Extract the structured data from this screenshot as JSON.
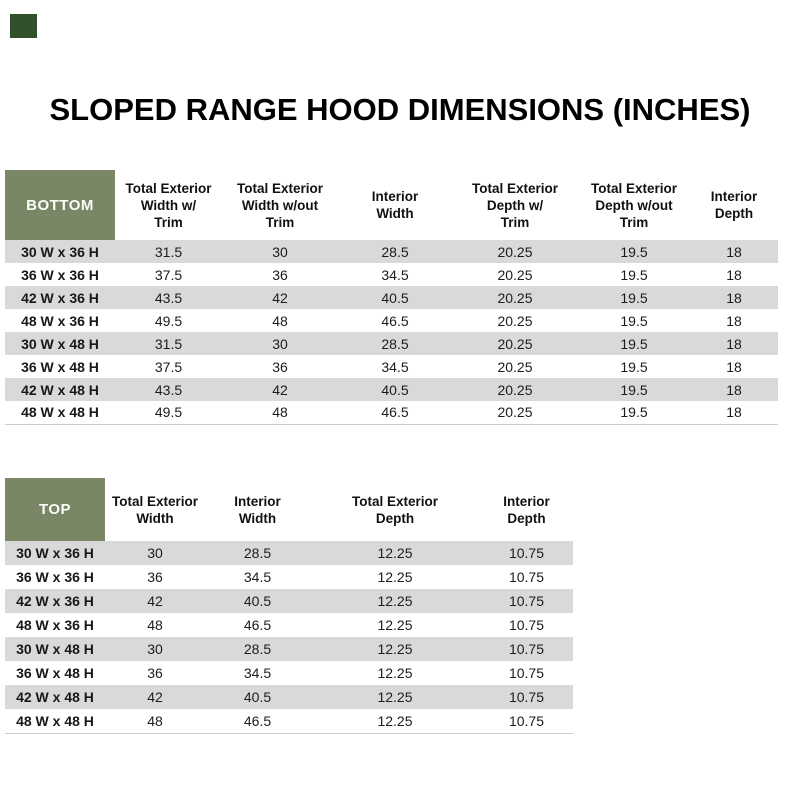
{
  "page": {
    "title": "SLOPED RANGE HOOD DIMENSIONS (INCHES)"
  },
  "colors": {
    "header_green": "#7A8767",
    "corner_square_green": "#33502C",
    "stripe_gray": "#D9D9D9"
  },
  "tables": [
    {
      "name": "bottom",
      "corner_label": "BOTTOM",
      "columns": [
        {
          "label": "Total Exterior Width w/ Trim",
          "lines": [
            "Total Exterior",
            "Width w/",
            "Trim"
          ]
        },
        {
          "label": "Total Exterior Width w/out Trim",
          "lines": [
            "Total Exterior",
            "Width w/out",
            "Trim"
          ]
        },
        {
          "label": "Interior Width",
          "lines": [
            "Interior",
            "Width"
          ]
        },
        {
          "label": "Total Exterior Depth w/ Trim",
          "lines": [
            "Total Exterior",
            "Depth w/",
            "Trim"
          ]
        },
        {
          "label": "Total Exterior Depth w/out Trim",
          "lines": [
            "Total Exterior",
            "Depth w/out",
            "Trim"
          ]
        },
        {
          "label": "Interior Depth",
          "lines": [
            "Interior",
            "Depth"
          ]
        }
      ],
      "rows": [
        {
          "size": "30 W x 36 H",
          "values": [
            "31.5",
            "30",
            "28.5",
            "20.25",
            "19.5",
            "18"
          ]
        },
        {
          "size": "36 W x 36 H",
          "values": [
            "37.5",
            "36",
            "34.5",
            "20.25",
            "19.5",
            "18"
          ]
        },
        {
          "size": "42 W x 36 H",
          "values": [
            "43.5",
            "42",
            "40.5",
            "20.25",
            "19.5",
            "18"
          ]
        },
        {
          "size": "48 W x 36 H",
          "values": [
            "49.5",
            "48",
            "46.5",
            "20.25",
            "19.5",
            "18"
          ]
        },
        {
          "size": "30 W x 48 H",
          "values": [
            "31.5",
            "30",
            "28.5",
            "20.25",
            "19.5",
            "18"
          ]
        },
        {
          "size": "36 W x 48 H",
          "values": [
            "37.5",
            "36",
            "34.5",
            "20.25",
            "19.5",
            "18"
          ]
        },
        {
          "size": "42 W x 48 H",
          "values": [
            "43.5",
            "42",
            "40.5",
            "20.25",
            "19.5",
            "18"
          ]
        },
        {
          "size": "48 W x 48 H",
          "values": [
            "49.5",
            "48",
            "46.5",
            "20.25",
            "19.5",
            "18"
          ]
        }
      ]
    },
    {
      "name": "top",
      "corner_label": "TOP",
      "columns": [
        {
          "label": "Total Exterior Width",
          "lines": [
            "Total Exterior",
            "Width"
          ]
        },
        {
          "label": "Interior Width",
          "lines": [
            "Interior",
            "Width"
          ]
        },
        {
          "label": "Total Exterior Depth",
          "lines": [
            "Total Exterior",
            "Depth"
          ]
        },
        {
          "label": "Interior Depth",
          "lines": [
            "Interior",
            "Depth"
          ]
        }
      ],
      "rows": [
        {
          "size": "30 W x 36 H",
          "values": [
            "30",
            "28.5",
            "12.25",
            "10.75"
          ]
        },
        {
          "size": "36 W x 36 H",
          "values": [
            "36",
            "34.5",
            "12.25",
            "10.75"
          ]
        },
        {
          "size": "42 W x 36 H",
          "values": [
            "42",
            "40.5",
            "12.25",
            "10.75"
          ]
        },
        {
          "size": "48 W x 36 H",
          "values": [
            "48",
            "46.5",
            "12.25",
            "10.75"
          ]
        },
        {
          "size": "30 W x 48 H",
          "values": [
            "30",
            "28.5",
            "12.25",
            "10.75"
          ]
        },
        {
          "size": "36 W x 48 H",
          "values": [
            "36",
            "34.5",
            "12.25",
            "10.75"
          ]
        },
        {
          "size": "42 W x 48 H",
          "values": [
            "42",
            "40.5",
            "12.25",
            "10.75"
          ]
        },
        {
          "size": "48 W x 48 H",
          "values": [
            "48",
            "46.5",
            "12.25",
            "10.75"
          ]
        }
      ]
    }
  ]
}
